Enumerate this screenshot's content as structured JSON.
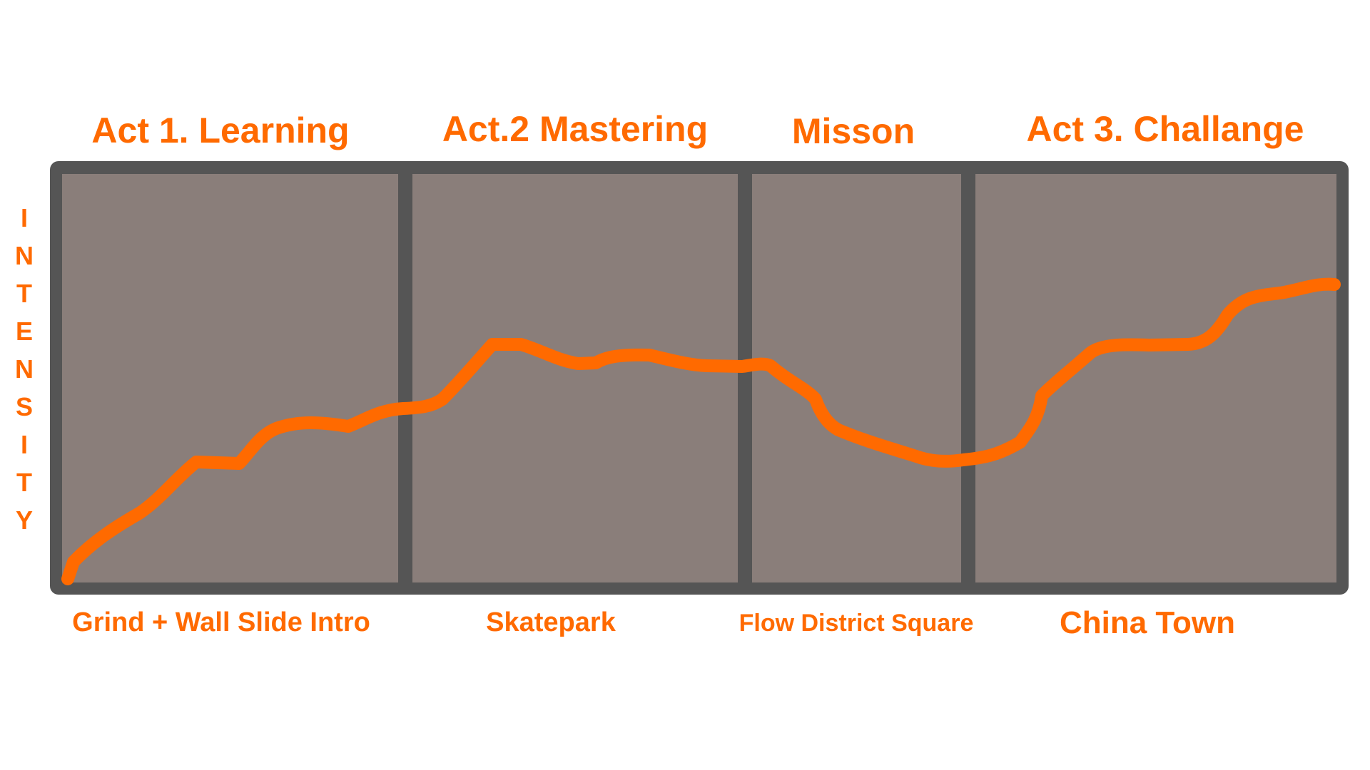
{
  "colors": {
    "accent": "#ff6a00",
    "frame": "#555555",
    "panel": "#8a7e7a",
    "background": "#ffffff"
  },
  "acts": [
    {
      "title": "Act 1. Learning",
      "label": "Grind + Wall Slide Intro"
    },
    {
      "title": "Act.2 Mastering",
      "label": "Skatepark"
    },
    {
      "title": "Misson",
      "label": "Flow District Square"
    },
    {
      "title": "Act 3. Challange",
      "label": "China Town"
    }
  ],
  "y_axis": {
    "label": "INTENSITY"
  }
}
